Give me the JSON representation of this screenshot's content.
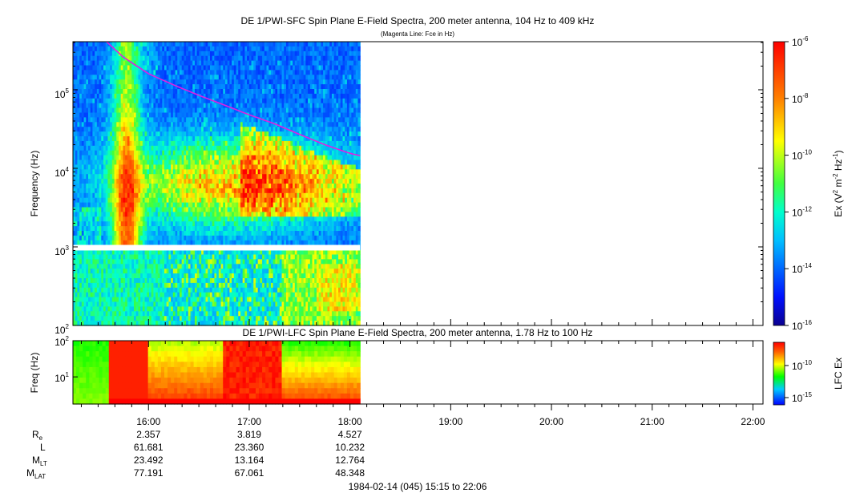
{
  "chart_data": [
    {
      "type": "heatmap",
      "title": "DE 1/PWI-SFC  Spin Plane E-Field Spectra, 200 meter antenna, 104 Hz to 409 kHz",
      "subtitle": "(Magenta Line: Fce in Hz)",
      "xlabel": "",
      "ylabel": "Frequency (Hz)",
      "yscale": "log",
      "ylim": [
        100,
        409000
      ],
      "y_ticks": [
        {
          "value": 100,
          "base": "10",
          "exp": "2"
        },
        {
          "value": 1000,
          "base": "10",
          "exp": "3"
        },
        {
          "value": 10000,
          "base": "10",
          "exp": "4"
        },
        {
          "value": 100000,
          "base": "10",
          "exp": "5"
        }
      ],
      "xlim": [
        "15:15",
        "22:06"
      ],
      "data_end": "18:06",
      "gap_hz": [
        900,
        1060
      ],
      "colorbar": {
        "label": "Ex (V2 m-2 Hz-1)",
        "label_parts": {
          "a": "Ex (V",
          "b": "2",
          "c": " m",
          "d": "-2",
          "e": " Hz",
          "f": "-1",
          "g": ")"
        },
        "scale": "log",
        "range": [
          1e-16,
          1e-06
        ],
        "ticks": [
          {
            "value": 1e-06,
            "base": "10",
            "exp": "-6"
          },
          {
            "value": 1e-08,
            "base": "10",
            "exp": "-8"
          },
          {
            "value": 1e-10,
            "base": "10",
            "exp": "-10"
          },
          {
            "value": 1e-12,
            "base": "10",
            "exp": "-12"
          },
          {
            "value": 1e-14,
            "base": "10",
            "exp": "-14"
          },
          {
            "value": 1e-16,
            "base": "10",
            "exp": "-16"
          }
        ]
      },
      "overlay": {
        "color": "#e020e0",
        "points": [
          {
            "t": "15:35",
            "hz": 409000
          },
          {
            "t": "15:45",
            "hz": 260000
          },
          {
            "t": "16:00",
            "hz": 160000
          },
          {
            "t": "16:15",
            "hz": 115000
          },
          {
            "t": "16:30",
            "hz": 85000
          },
          {
            "t": "16:45",
            "hz": 64000
          },
          {
            "t": "17:00",
            "hz": 48000
          },
          {
            "t": "17:15",
            "hz": 37000
          },
          {
            "t": "17:30",
            "hz": 27000
          },
          {
            "t": "17:45",
            "hz": 20000
          },
          {
            "t": "18:00",
            "hz": 15500
          },
          {
            "t": "18:06",
            "hz": 14500
          }
        ]
      }
    },
    {
      "type": "heatmap",
      "title": "DE 1/PWI-LFC  Spin Plane E-Field Spectra, 200 meter antenna, 1.78 Hz to 100 Hz",
      "xlabel": "",
      "ylabel": "Freq (Hz)",
      "yscale": "log",
      "ylim": [
        1.78,
        100
      ],
      "y_ticks": [
        {
          "value": 10,
          "base": "10",
          "exp": "1"
        },
        {
          "value": 100,
          "base": "10",
          "exp": "2"
        }
      ],
      "xlim": [
        "15:15",
        "22:06"
      ],
      "data_end": "18:06",
      "colorbar": {
        "label": "LFC Ex",
        "scale": "log",
        "ticks": [
          {
            "value": 1e-10,
            "base": "10",
            "exp": "-10"
          },
          {
            "value": 1e-15,
            "base": "10",
            "exp": "-15"
          }
        ]
      }
    }
  ],
  "x_axis": {
    "ticks": [
      "16:00",
      "17:00",
      "18:00",
      "19:00",
      "20:00",
      "21:00",
      "22:00"
    ],
    "minor_minutes": 10
  },
  "ephemeris": {
    "rows": [
      {
        "label": "R",
        "sub": "e",
        "values": [
          "2.357",
          "3.819",
          "4.527"
        ]
      },
      {
        "label": "L",
        "sub": "",
        "values": [
          "61.681",
          "23.360",
          "10.232"
        ]
      },
      {
        "label": "M",
        "sub": "LT",
        "values": [
          "23.492",
          "13.164",
          "12.764"
        ]
      },
      {
        "label": "M",
        "sub": "LAT",
        "values": [
          "77.191",
          "67.061",
          "48.348"
        ]
      }
    ]
  },
  "footer": "1984-02-14 (045) 15:15 to 22:06"
}
